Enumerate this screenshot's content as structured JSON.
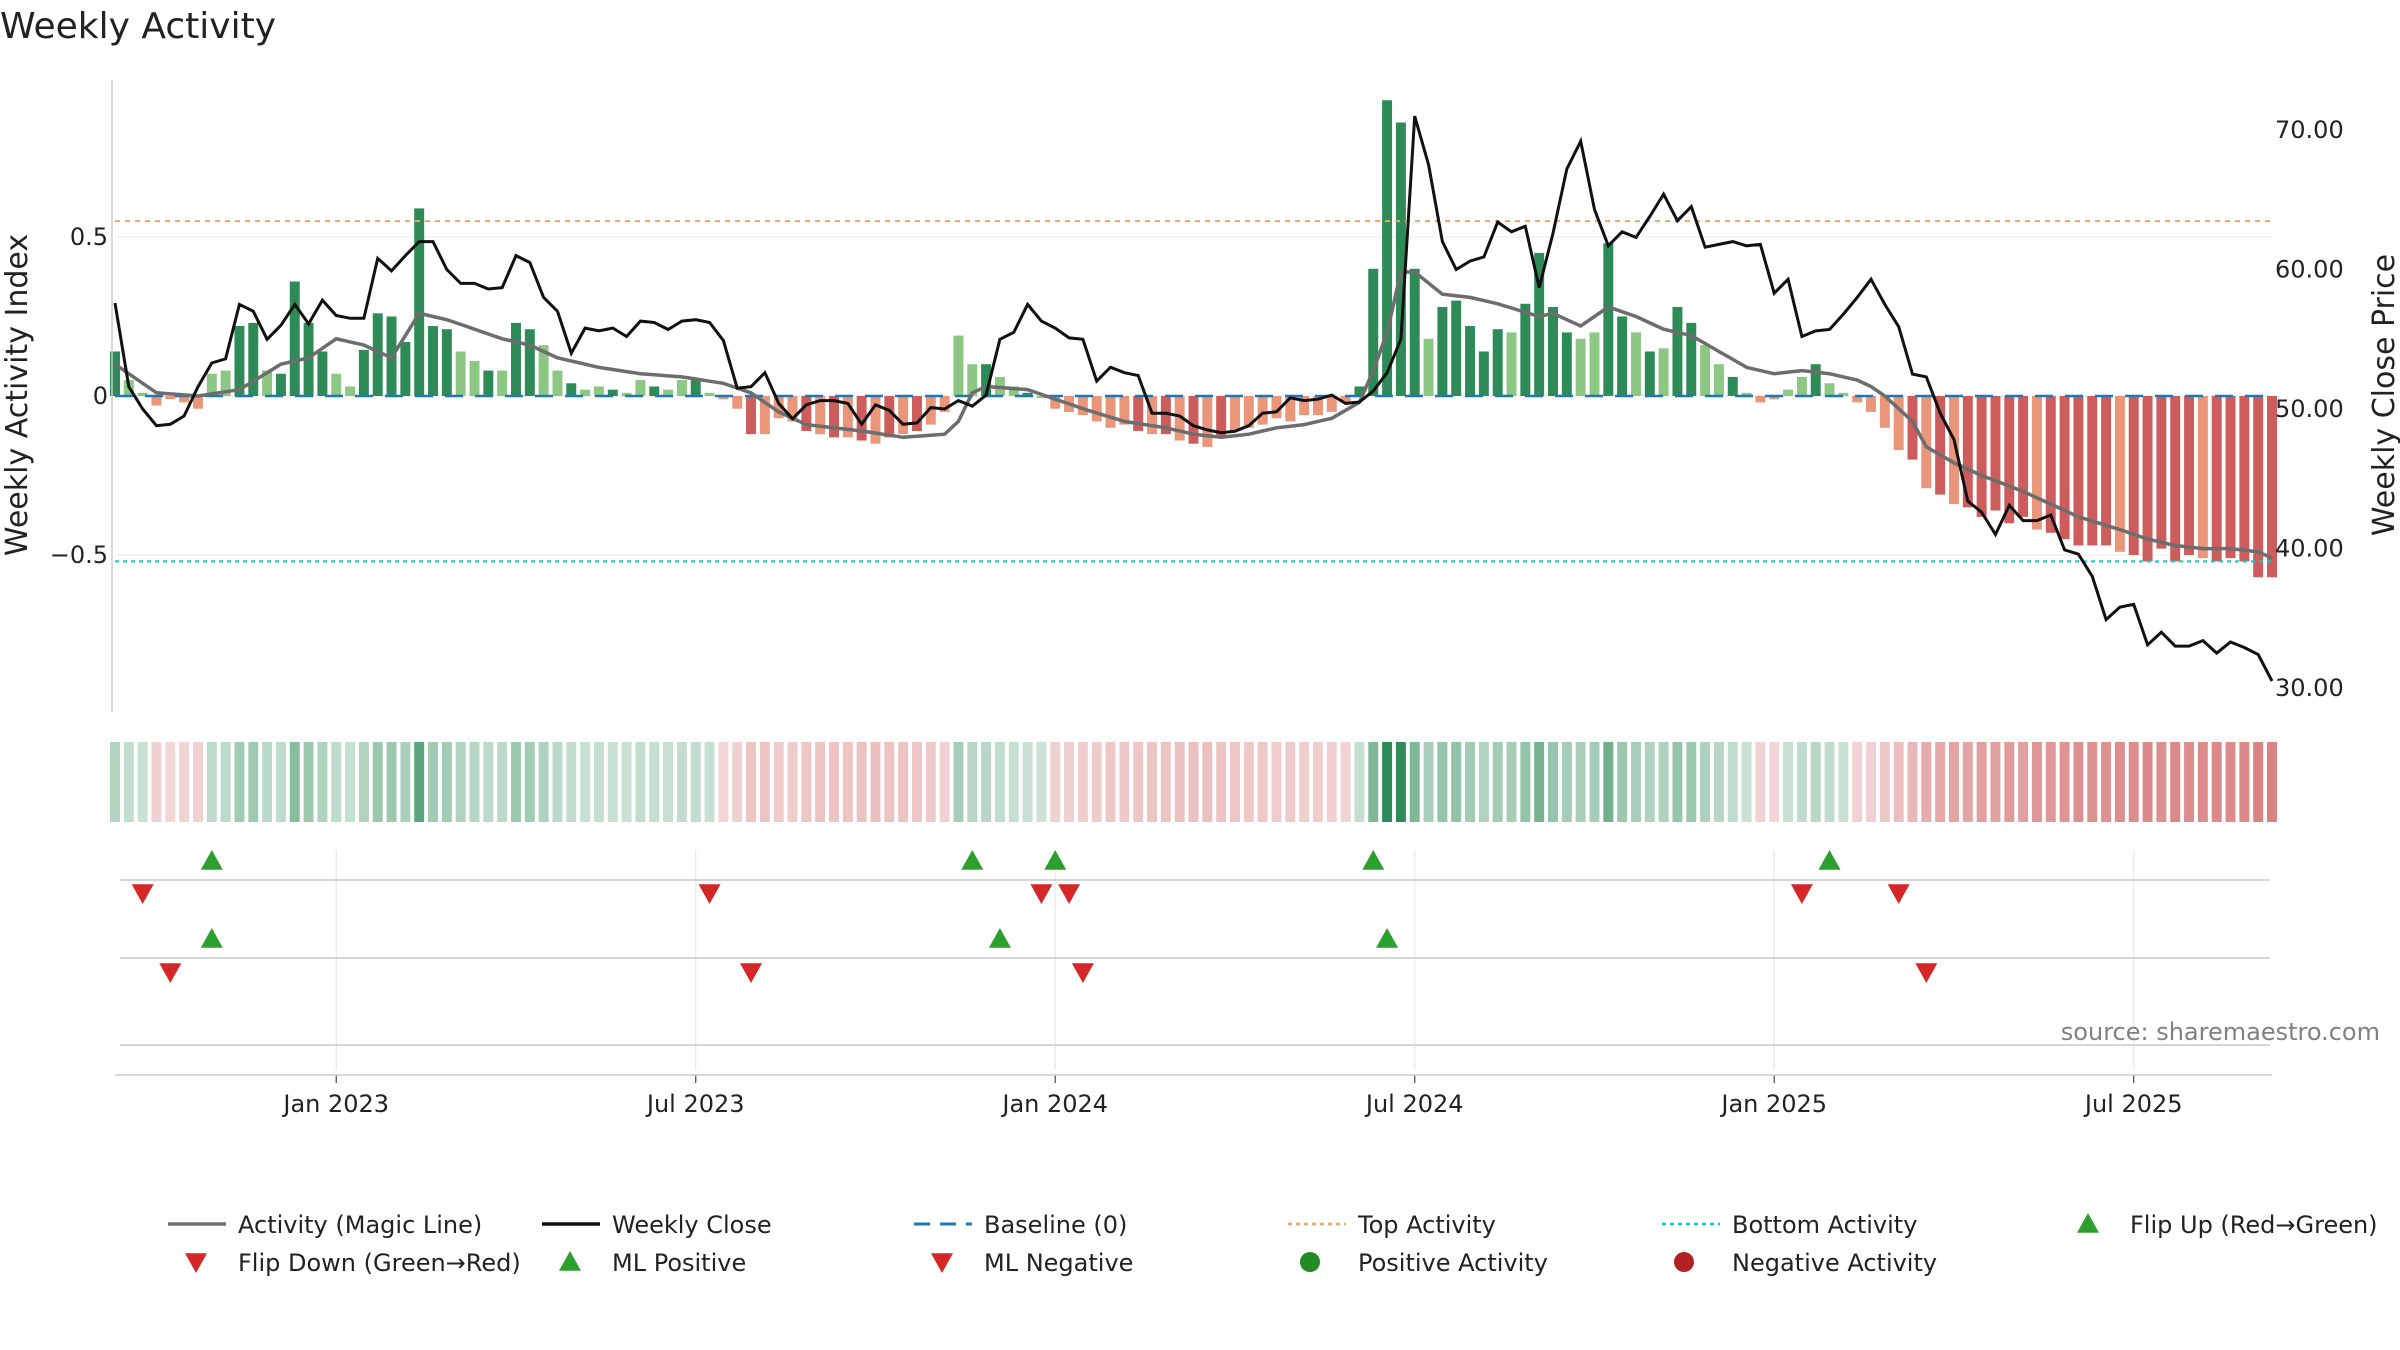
{
  "chart_data": {
    "type": "bar+line",
    "title": "Weekly Activity",
    "ylabel_left": "Weekly Activity Index",
    "ylabel_right": "Weekly Close Price",
    "source": "source: sharemaestro.com",
    "yticks_left": [
      {
        "v": 0.5,
        "label": "0.5"
      },
      {
        "v": 0,
        "label": "0"
      },
      {
        "v": -0.5,
        "label": "−0.5"
      }
    ],
    "yticks_right": [
      {
        "v": 70,
        "label": "70.00"
      },
      {
        "v": 60,
        "label": "60.00"
      },
      {
        "v": 50,
        "label": "50.00"
      },
      {
        "v": 40,
        "label": "40.00"
      },
      {
        "v": 30,
        "label": "30.00"
      }
    ],
    "ylim_left": [
      -0.98,
      0.98
    ],
    "ylim_right": [
      29,
      73
    ],
    "x_start_date": "2022-09-09",
    "week_count": 157,
    "xticks": [
      {
        "week": 16,
        "label": "Jan 2023"
      },
      {
        "week": 42,
        "label": "Jul 2023"
      },
      {
        "week": 68,
        "label": "Jan 2024"
      },
      {
        "week": 94,
        "label": "Jul 2024"
      },
      {
        "week": 120,
        "label": "Jan 2025"
      },
      {
        "week": 146,
        "label": "Jul 2025"
      }
    ],
    "top_activity": 0.55,
    "bottom_activity": -0.52,
    "activity_anchors": [
      [
        0,
        0.14
      ],
      [
        1,
        0.05
      ],
      [
        2,
        0.01
      ],
      [
        3,
        -0.03
      ],
      [
        4,
        -0.01
      ],
      [
        5,
        -0.02
      ],
      [
        6,
        -0.04
      ],
      [
        7,
        0.07
      ],
      [
        8,
        0.08
      ],
      [
        9,
        0.22
      ],
      [
        10,
        0.23
      ],
      [
        11,
        0.08
      ],
      [
        12,
        0.07
      ],
      [
        13,
        0.36
      ],
      [
        14,
        0.23
      ],
      [
        15,
        0.14
      ],
      [
        16,
        0.07
      ],
      [
        17,
        0.03
      ],
      [
        19,
        0.26
      ],
      [
        20,
        0.25
      ],
      [
        21,
        0.17
      ],
      [
        22,
        0.59
      ],
      [
        23,
        0.22
      ],
      [
        24,
        0.21
      ],
      [
        25,
        0.14
      ],
      [
        26,
        0.11
      ],
      [
        27,
        0.08
      ],
      [
        28,
        0.08
      ],
      [
        29,
        0.23
      ],
      [
        30,
        0.21
      ],
      [
        31,
        0.16
      ],
      [
        32,
        0.08
      ],
      [
        33,
        0.04
      ],
      [
        34,
        0.02
      ],
      [
        35,
        0.03
      ],
      [
        36,
        0.02
      ],
      [
        37,
        0.01
      ],
      [
        38,
        0.05
      ],
      [
        39,
        0.03
      ],
      [
        40,
        0.02
      ],
      [
        41,
        0.05
      ],
      [
        42,
        0.05
      ],
      [
        43,
        0.01
      ],
      [
        44,
        -0.01
      ],
      [
        45,
        -0.04
      ],
      [
        46,
        -0.12
      ],
      [
        47,
        -0.12
      ],
      [
        48,
        -0.07
      ],
      [
        49,
        -0.08
      ],
      [
        50,
        -0.11
      ],
      [
        51,
        -0.12
      ],
      [
        52,
        -0.13
      ],
      [
        53,
        -0.13
      ],
      [
        54,
        -0.14
      ],
      [
        55,
        -0.15
      ],
      [
        56,
        -0.13
      ],
      [
        57,
        -0.12
      ],
      [
        58,
        -0.11
      ],
      [
        59,
        -0.09
      ],
      [
        60,
        -0.05
      ],
      [
        61,
        0.19
      ],
      [
        62,
        0.1
      ],
      [
        63,
        0.1
      ],
      [
        64,
        0.06
      ],
      [
        65,
        0.03
      ],
      [
        66,
        0.01
      ],
      [
        67,
        0.0
      ],
      [
        68,
        -0.04
      ],
      [
        69,
        -0.05
      ],
      [
        70,
        -0.06
      ],
      [
        71,
        -0.08
      ],
      [
        72,
        -0.1
      ],
      [
        73,
        -0.09
      ],
      [
        74,
        -0.11
      ],
      [
        75,
        -0.12
      ],
      [
        76,
        -0.12
      ],
      [
        77,
        -0.14
      ],
      [
        78,
        -0.15
      ],
      [
        79,
        -0.16
      ],
      [
        80,
        -0.13
      ],
      [
        81,
        -0.11
      ],
      [
        82,
        -0.1
      ],
      [
        83,
        -0.09
      ],
      [
        84,
        -0.07
      ],
      [
        85,
        -0.08
      ],
      [
        86,
        -0.06
      ],
      [
        87,
        -0.06
      ],
      [
        88,
        -0.05
      ],
      [
        89,
        -0.02
      ],
      [
        90,
        0.03
      ],
      [
        91,
        0.4
      ],
      [
        92,
        0.93
      ],
      [
        93,
        0.86
      ],
      [
        94,
        0.4
      ],
      [
        95,
        0.18
      ],
      [
        96,
        0.28
      ],
      [
        97,
        0.3
      ],
      [
        98,
        0.22
      ],
      [
        99,
        0.14
      ],
      [
        100,
        0.21
      ],
      [
        101,
        0.2
      ],
      [
        102,
        0.29
      ],
      [
        103,
        0.45
      ],
      [
        104,
        0.28
      ],
      [
        105,
        0.2
      ],
      [
        106,
        0.18
      ],
      [
        107,
        0.2
      ],
      [
        108,
        0.48
      ],
      [
        109,
        0.25
      ],
      [
        110,
        0.2
      ],
      [
        111,
        0.14
      ],
      [
        112,
        0.15
      ],
      [
        113,
        0.28
      ],
      [
        114,
        0.23
      ],
      [
        115,
        0.16
      ],
      [
        116,
        0.1
      ],
      [
        117,
        0.06
      ],
      [
        118,
        0.01
      ],
      [
        119,
        -0.02
      ],
      [
        120,
        -0.01
      ],
      [
        121,
        0.02
      ],
      [
        122,
        0.06
      ],
      [
        123,
        0.1
      ],
      [
        124,
        0.04
      ],
      [
        125,
        0.01
      ],
      [
        126,
        -0.02
      ],
      [
        127,
        -0.05
      ],
      [
        128,
        -0.1
      ],
      [
        129,
        -0.17
      ],
      [
        130,
        -0.2
      ],
      [
        131,
        -0.29
      ],
      [
        132,
        -0.31
      ],
      [
        133,
        -0.34
      ],
      [
        134,
        -0.35
      ],
      [
        135,
        -0.38
      ],
      [
        136,
        -0.36
      ],
      [
        137,
        -0.4
      ],
      [
        138,
        -0.38
      ],
      [
        139,
        -0.42
      ],
      [
        140,
        -0.43
      ],
      [
        141,
        -0.45
      ],
      [
        142,
        -0.47
      ],
      [
        143,
        -0.47
      ],
      [
        144,
        -0.47
      ],
      [
        145,
        -0.49
      ],
      [
        146,
        -0.5
      ],
      [
        147,
        -0.52
      ],
      [
        148,
        -0.48
      ],
      [
        149,
        -0.52
      ],
      [
        150,
        -0.5
      ],
      [
        151,
        -0.51
      ],
      [
        152,
        -0.52
      ],
      [
        153,
        -0.51
      ],
      [
        154,
        -0.52
      ],
      [
        155,
        -0.57
      ],
      [
        156,
        -0.57
      ]
    ],
    "magic_line_anchors": [
      [
        0,
        0.1
      ],
      [
        3,
        0.01
      ],
      [
        6,
        0.0
      ],
      [
        9,
        0.02
      ],
      [
        12,
        0.1
      ],
      [
        14,
        0.12
      ],
      [
        16,
        0.18
      ],
      [
        18,
        0.16
      ],
      [
        20,
        0.12
      ],
      [
        22,
        0.26
      ],
      [
        24,
        0.24
      ],
      [
        26,
        0.21
      ],
      [
        28,
        0.18
      ],
      [
        30,
        0.16
      ],
      [
        32,
        0.12
      ],
      [
        35,
        0.09
      ],
      [
        38,
        0.07
      ],
      [
        41,
        0.06
      ],
      [
        44,
        0.04
      ],
      [
        46,
        0.01
      ],
      [
        48,
        -0.05
      ],
      [
        50,
        -0.09
      ],
      [
        54,
        -0.11
      ],
      [
        57,
        -0.13
      ],
      [
        60,
        -0.12
      ],
      [
        61,
        -0.08
      ],
      [
        62,
        0.01
      ],
      [
        63,
        0.03
      ],
      [
        66,
        0.02
      ],
      [
        68,
        -0.01
      ],
      [
        70,
        -0.04
      ],
      [
        73,
        -0.08
      ],
      [
        76,
        -0.1
      ],
      [
        78,
        -0.12
      ],
      [
        80,
        -0.13
      ],
      [
        82,
        -0.12
      ],
      [
        84,
        -0.1
      ],
      [
        86,
        -0.09
      ],
      [
        88,
        -0.07
      ],
      [
        90,
        -0.02
      ],
      [
        91,
        0.08
      ],
      [
        92,
        0.2
      ],
      [
        93,
        0.39
      ],
      [
        94,
        0.39
      ],
      [
        96,
        0.32
      ],
      [
        98,
        0.31
      ],
      [
        100,
        0.29
      ],
      [
        103,
        0.25
      ],
      [
        104,
        0.26
      ],
      [
        106,
        0.22
      ],
      [
        108,
        0.28
      ],
      [
        110,
        0.25
      ],
      [
        112,
        0.21
      ],
      [
        114,
        0.19
      ],
      [
        116,
        0.14
      ],
      [
        118,
        0.09
      ],
      [
        120,
        0.07
      ],
      [
        122,
        0.08
      ],
      [
        124,
        0.07
      ],
      [
        126,
        0.05
      ],
      [
        127,
        0.03
      ],
      [
        128,
        0.0
      ],
      [
        130,
        -0.08
      ],
      [
        131,
        -0.16
      ],
      [
        133,
        -0.21
      ],
      [
        135,
        -0.25
      ],
      [
        138,
        -0.3
      ],
      [
        140,
        -0.34
      ],
      [
        142,
        -0.38
      ],
      [
        145,
        -0.42
      ],
      [
        147,
        -0.45
      ],
      [
        149,
        -0.47
      ],
      [
        151,
        -0.48
      ],
      [
        153,
        -0.48
      ],
      [
        155,
        -0.49
      ],
      [
        156,
        -0.51
      ]
    ],
    "close_anchors": [
      [
        0,
        57.6
      ],
      [
        1,
        51.6
      ],
      [
        2,
        50.0
      ],
      [
        3,
        48.8
      ],
      [
        4,
        48.9
      ],
      [
        5,
        49.5
      ],
      [
        6,
        51.6
      ],
      [
        7,
        53.3
      ],
      [
        8,
        53.6
      ],
      [
        9,
        57.5
      ],
      [
        10,
        57.0
      ],
      [
        11,
        55.0
      ],
      [
        12,
        56.0
      ],
      [
        13,
        57.5
      ],
      [
        14,
        56.1
      ],
      [
        15,
        57.8
      ],
      [
        16,
        56.7
      ],
      [
        17,
        56.5
      ],
      [
        18,
        56.5
      ],
      [
        19,
        60.8
      ],
      [
        20,
        59.9
      ],
      [
        21,
        61.0
      ],
      [
        22,
        62.0
      ],
      [
        23,
        62.0
      ],
      [
        24,
        60.0
      ],
      [
        25,
        59.0
      ],
      [
        26,
        59.0
      ],
      [
        27,
        58.6
      ],
      [
        28,
        58.7
      ],
      [
        29,
        61.0
      ],
      [
        30,
        60.5
      ],
      [
        31,
        58.0
      ],
      [
        32,
        57.0
      ],
      [
        33,
        54.0
      ],
      [
        34,
        55.8
      ],
      [
        35,
        55.6
      ],
      [
        36,
        55.8
      ],
      [
        37,
        55.2
      ],
      [
        38,
        56.3
      ],
      [
        39,
        56.2
      ],
      [
        40,
        55.7
      ],
      [
        41,
        56.3
      ],
      [
        42,
        56.4
      ],
      [
        43,
        56.2
      ],
      [
        44,
        54.9
      ],
      [
        45,
        51.5
      ],
      [
        46,
        51.6
      ],
      [
        47,
        52.6
      ],
      [
        48,
        50.4
      ],
      [
        49,
        49.3
      ],
      [
        50,
        50.3
      ],
      [
        51,
        50.6
      ],
      [
        52,
        50.6
      ],
      [
        53,
        50.4
      ],
      [
        54,
        48.9
      ],
      [
        55,
        50.3
      ],
      [
        56,
        49.9
      ],
      [
        57,
        48.9
      ],
      [
        58,
        49.0
      ],
      [
        59,
        50.1
      ],
      [
        60,
        50.0
      ],
      [
        61,
        50.6
      ],
      [
        62,
        50.2
      ],
      [
        63,
        51.0
      ],
      [
        64,
        55.0
      ],
      [
        65,
        55.5
      ],
      [
        66,
        57.5
      ],
      [
        67,
        56.3
      ],
      [
        68,
        55.8
      ],
      [
        69,
        55.1
      ],
      [
        70,
        55.0
      ],
      [
        71,
        52.0
      ],
      [
        72,
        53.0
      ],
      [
        73,
        52.6
      ],
      [
        74,
        52.4
      ],
      [
        75,
        49.7
      ],
      [
        76,
        49.7
      ],
      [
        77,
        49.5
      ],
      [
        78,
        48.8
      ],
      [
        79,
        48.5
      ],
      [
        80,
        48.3
      ],
      [
        81,
        48.4
      ],
      [
        82,
        48.8
      ],
      [
        83,
        49.7
      ],
      [
        84,
        49.8
      ],
      [
        85,
        50.8
      ],
      [
        86,
        50.6
      ],
      [
        87,
        50.7
      ],
      [
        88,
        51.0
      ],
      [
        89,
        50.4
      ],
      [
        90,
        50.5
      ],
      [
        91,
        51.3
      ],
      [
        92,
        52.6
      ],
      [
        93,
        55.0
      ],
      [
        94,
        71.0
      ],
      [
        95,
        67.5
      ],
      [
        96,
        62.0
      ],
      [
        97,
        60.0
      ],
      [
        98,
        60.6
      ],
      [
        99,
        60.9
      ],
      [
        100,
        63.4
      ],
      [
        101,
        62.7
      ],
      [
        102,
        63.1
      ],
      [
        103,
        58.7
      ],
      [
        104,
        62.6
      ],
      [
        105,
        67.2
      ],
      [
        106,
        69.2
      ],
      [
        107,
        64.3
      ],
      [
        108,
        61.7
      ],
      [
        109,
        62.7
      ],
      [
        110,
        62.3
      ],
      [
        111,
        63.8
      ],
      [
        112,
        65.4
      ],
      [
        113,
        63.5
      ],
      [
        114,
        64.5
      ],
      [
        115,
        61.6
      ],
      [
        116,
        61.8
      ],
      [
        117,
        62.0
      ],
      [
        118,
        61.7
      ],
      [
        119,
        61.8
      ],
      [
        120,
        58.3
      ],
      [
        121,
        59.3
      ],
      [
        122,
        55.2
      ],
      [
        123,
        55.6
      ],
      [
        124,
        55.7
      ],
      [
        125,
        56.8
      ],
      [
        126,
        58.0
      ],
      [
        127,
        59.3
      ],
      [
        128,
        57.5
      ],
      [
        129,
        55.9
      ],
      [
        130,
        52.5
      ],
      [
        131,
        52.3
      ],
      [
        132,
        49.7
      ],
      [
        133,
        47.8
      ],
      [
        134,
        43.4
      ],
      [
        135,
        42.6
      ],
      [
        136,
        41.0
      ],
      [
        137,
        43.1
      ],
      [
        138,
        42.0
      ],
      [
        139,
        42.0
      ],
      [
        140,
        42.4
      ],
      [
        141,
        39.9
      ],
      [
        142,
        39.6
      ],
      [
        143,
        38.0
      ],
      [
        144,
        34.9
      ],
      [
        145,
        35.8
      ],
      [
        146,
        36.0
      ],
      [
        147,
        33.1
      ],
      [
        148,
        34.0
      ],
      [
        149,
        33.0
      ],
      [
        150,
        33.0
      ],
      [
        151,
        33.4
      ],
      [
        152,
        32.5
      ],
      [
        153,
        33.3
      ],
      [
        154,
        32.9
      ],
      [
        155,
        32.4
      ],
      [
        156,
        30.5
      ]
    ],
    "flip_up_weeks": [
      7,
      62,
      68,
      91,
      124
    ],
    "flip_down_weeks": [
      2,
      43,
      67,
      69,
      122,
      129
    ],
    "ml_positive_weeks": [
      7,
      64,
      92
    ],
    "ml_negative_weeks": [
      4,
      46,
      70,
      131
    ],
    "legend": [
      {
        "label": "Activity (Magic Line)",
        "sym": "line",
        "color": "#6d6d6d"
      },
      {
        "label": "Weekly Close",
        "sym": "line",
        "color": "#111111"
      },
      {
        "label": "Baseline (0)",
        "sym": "dash",
        "color": "#1f77b4"
      },
      {
        "label": "Top Activity",
        "sym": "dot",
        "color": "#f4a460"
      },
      {
        "label": "Bottom Activity",
        "sym": "dot",
        "color": "#00ced1"
      },
      {
        "label": "Flip Up (Red→Green)",
        "sym": "up",
        "color": "#2ca02c"
      },
      {
        "label": "Flip Down (Green→Red)",
        "sym": "down",
        "color": "#d62728"
      },
      {
        "label": "ML Positive",
        "sym": "up",
        "color": "#2ca02c"
      },
      {
        "label": "ML Negative",
        "sym": "down",
        "color": "#d62728"
      },
      {
        "label": "Positive Activity",
        "sym": "circle",
        "color": "#228b22"
      },
      {
        "label": "Negative Activity",
        "sym": "circle",
        "color": "#b22222"
      }
    ],
    "colors": {
      "pos_strong": "#2e8b57",
      "pos_light": "#8cc783",
      "neg_strong": "#cd5c5c",
      "neg_light": "#e9967a",
      "grid": "#e8e8e8",
      "axis": "#cccccc"
    }
  }
}
